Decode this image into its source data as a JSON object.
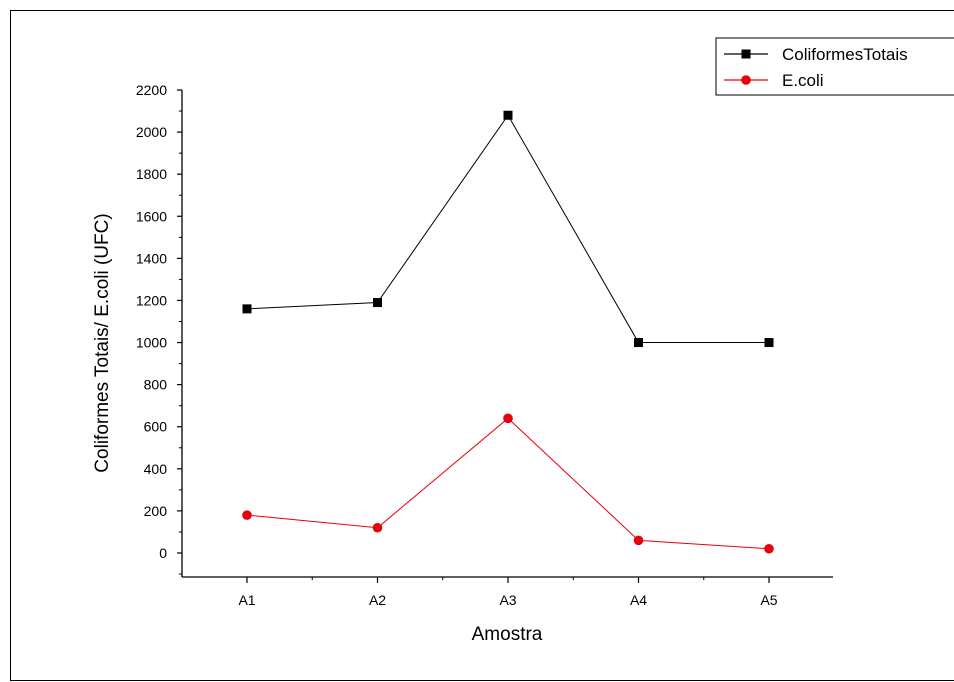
{
  "chart_data": {
    "type": "line",
    "title": "",
    "xlabel": "Amostra",
    "ylabel": "Coliformes Totais/ E.coli (UFC)",
    "categories": [
      "A1",
      "A2",
      "A3",
      "A4",
      "A5"
    ],
    "ylim": [
      -100,
      2200
    ],
    "yticks": [
      0,
      200,
      400,
      600,
      800,
      1000,
      1200,
      1400,
      1600,
      1800,
      2000,
      2200
    ],
    "grid": false,
    "legend_position": "top-right",
    "series": [
      {
        "name": "ColiformesTotais",
        "color": "#000000",
        "marker": "square",
        "values": [
          1160,
          1190,
          2080,
          1000,
          1000
        ]
      },
      {
        "name": "E.coli",
        "color": "#e8000b",
        "marker": "circle",
        "values": [
          180,
          120,
          640,
          60,
          20
        ]
      }
    ]
  }
}
